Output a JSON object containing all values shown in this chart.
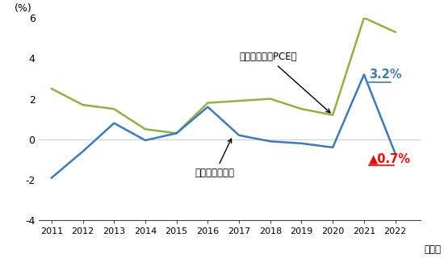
{
  "years": [
    2011,
    2012,
    2013,
    2014,
    2015,
    2016,
    2017,
    2018,
    2019,
    2020,
    2021,
    2022
  ],
  "markup_rate": [
    -1.9,
    -0.6,
    0.8,
    -0.05,
    0.3,
    1.6,
    0.2,
    -0.1,
    -0.2,
    -0.4,
    3.2,
    -0.7
  ],
  "inflation_pce": [
    2.5,
    1.7,
    1.5,
    0.5,
    0.3,
    1.8,
    1.9,
    2.0,
    1.5,
    1.2,
    6.0,
    5.3
  ],
  "markup_color": "#3a7bbf",
  "inflation_color": "#8db43e",
  "annotation_2021": "3.2%",
  "annotation_2022": "▲0.7%",
  "ylim": [
    -4,
    6
  ],
  "yticks": [
    -4,
    -2,
    0,
    2,
    4,
    6
  ],
  "ylabel": "(%)",
  "xlabel_suffix": "（年）",
  "background_color": "#ffffff",
  "label_inflation": "インフレ率（PCE）",
  "label_markup": "マークアップ率"
}
